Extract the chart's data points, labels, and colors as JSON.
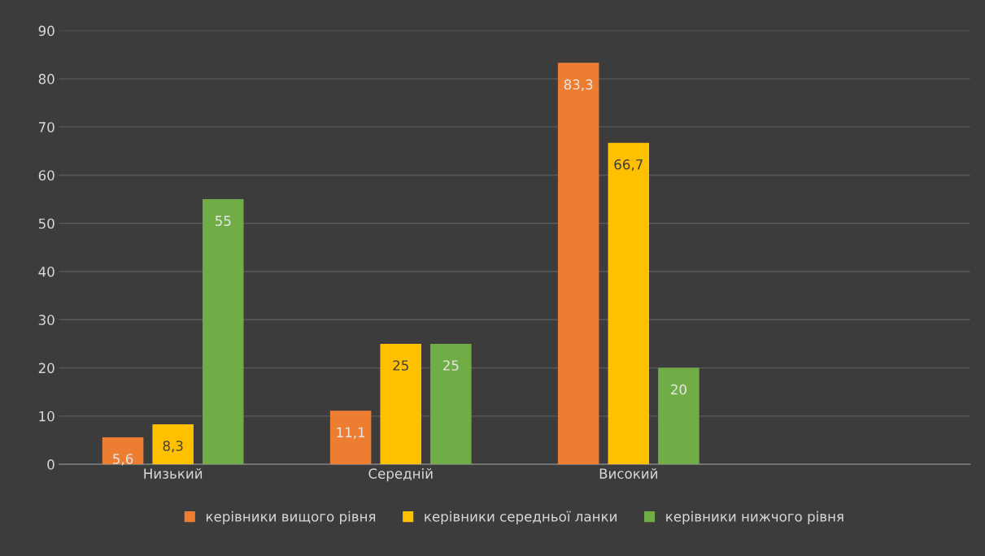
{
  "chart_data": {
    "type": "bar",
    "categories": [
      "Низький",
      "Середній",
      "Високий",
      null
    ],
    "series": [
      {
        "name": "керівники вищого рівня",
        "color": "#ed7d31",
        "values": [
          5.6,
          11.1,
          83.3,
          null
        ]
      },
      {
        "name": "керівники середньої ланки",
        "color": "#ffc000",
        "values": [
          8.3,
          25,
          66.7,
          null
        ]
      },
      {
        "name": "керівники нижчого рівня",
        "color": "#70ad47",
        "values": [
          55,
          25,
          20,
          null
        ]
      }
    ],
    "value_labels": [
      [
        "5,6",
        "11,1",
        "83,3",
        null
      ],
      [
        "8,3",
        "25",
        "66,7",
        null
      ],
      [
        "55",
        "25",
        "20",
        null
      ]
    ],
    "ylim": [
      0,
      90
    ],
    "yticks": [
      0,
      10,
      20,
      30,
      40,
      50,
      60,
      70,
      80,
      90
    ],
    "grid": "y",
    "legend": "bottom"
  }
}
